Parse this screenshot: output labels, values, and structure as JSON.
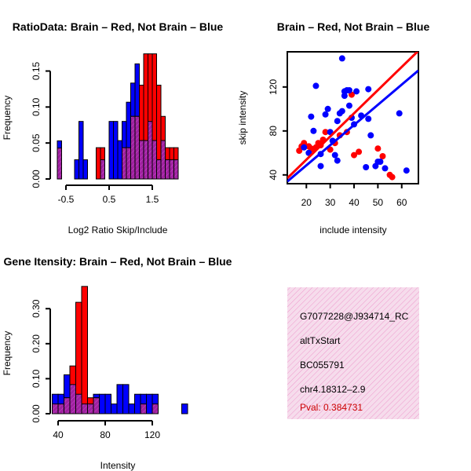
{
  "colors": {
    "red": "#ff0000",
    "blue": "#0000ff",
    "overlap": "#a020a0",
    "info_bg": "#f6dcec",
    "info_hatch": "#ee99cc",
    "pval_text": "#cc0000"
  },
  "chart_data": [
    {
      "id": "ratio_hist",
      "type": "bar",
      "title": "RatioData: Brain – Red, Not Brain – Blue",
      "xlabel": "Log2 Ratio Skip/Include",
      "ylabel": "Frequency",
      "x_ticks": [
        "-0.5",
        "0.5",
        "1.5"
      ],
      "y_ticks": [
        "0.00",
        "0.05",
        "0.10",
        "0.15"
      ],
      "bin_starts": [
        -0.7,
        -0.6,
        -0.5,
        -0.4,
        -0.3,
        -0.2,
        -0.1,
        0.0,
        0.1,
        0.2,
        0.3,
        0.4,
        0.5,
        0.6,
        0.7,
        0.8,
        0.9,
        1.0,
        1.1,
        1.2,
        1.3,
        1.4,
        1.5,
        1.6,
        1.7,
        1.8,
        1.9,
        2.0
      ],
      "bin_width": 0.1,
      "series": [
        {
          "name": "Not Brain",
          "color": "blue",
          "values": [
            0.053,
            0,
            0,
            0,
            0.0267,
            0.08,
            0.0267,
            0,
            0,
            0,
            0.0267,
            0,
            0.08,
            0.08,
            0.0533,
            0.08,
            0.1067,
            0.1333,
            0.16,
            0.1067,
            0.1333,
            0.08,
            0.0533,
            0.0267,
            0.0533,
            0.0267,
            0.0267,
            0.0267
          ]
        },
        {
          "name": "Brain",
          "color": "red",
          "values": [
            0,
            0,
            0,
            0,
            0,
            0,
            0,
            0,
            0,
            0.0435,
            0.0435,
            0,
            0,
            0,
            0,
            0.0435,
            0.0435,
            0.087,
            0.087,
            0.1304,
            0.1739,
            0.1739,
            0.1739,
            0.1304,
            0.087,
            0.0435,
            0.0435,
            0.0435
          ]
        }
      ],
      "overlap_values": [
        0.043,
        0,
        0,
        0,
        0,
        0,
        0,
        0,
        0,
        0,
        0.0267,
        0,
        0,
        0,
        0,
        0.0435,
        0.0435,
        0.087,
        0.087,
        0.0535,
        0.0535,
        0.08,
        0.0535,
        0.0267,
        0.0535,
        0.0267,
        0.0267,
        0.0267
      ],
      "xlim": [
        -0.9,
        2.3
      ],
      "ylim": [
        0,
        0.18
      ]
    },
    {
      "id": "scatter",
      "type": "scatter",
      "title": "Brain – Red, Not Brain – Blue",
      "xlabel": "include intensity",
      "ylabel": "skip intensity",
      "x_ticks": [
        "20",
        "30",
        "40",
        "50",
        "60"
      ],
      "y_ticks": [
        "40",
        "80",
        "120"
      ],
      "xlim": [
        12,
        67
      ],
      "ylim": [
        32,
        152
      ],
      "series": [
        {
          "name": "Brain",
          "color": "red",
          "points": [
            [
              17,
              62
            ],
            [
              18,
              66
            ],
            [
              19,
              69
            ],
            [
              21,
              66
            ],
            [
              22,
              64
            ],
            [
              23,
              63
            ],
            [
              24,
              65
            ],
            [
              25,
              69
            ],
            [
              26,
              67
            ],
            [
              27,
              72
            ],
            [
              28,
              79
            ],
            [
              30,
              63
            ],
            [
              32,
              69
            ],
            [
              34,
              76
            ],
            [
              37,
              79
            ],
            [
              39,
              113
            ],
            [
              40,
              58
            ],
            [
              42,
              61
            ],
            [
              50,
              64
            ],
            [
              52,
              57
            ],
            [
              55,
              40
            ],
            [
              56,
              38
            ]
          ],
          "fit": [
            [
              12,
              37
            ],
            [
              67,
              153
            ]
          ]
        },
        {
          "name": "Not Brain",
          "color": "blue",
          "points": [
            [
              19,
              65
            ],
            [
              21,
              60
            ],
            [
              22,
              93
            ],
            [
              23,
              80
            ],
            [
              24,
              121
            ],
            [
              26,
              48
            ],
            [
              26,
              59
            ],
            [
              28,
              95
            ],
            [
              29,
              100
            ],
            [
              30,
              79
            ],
            [
              31,
              71
            ],
            [
              32,
              58
            ],
            [
              33,
              53
            ],
            [
              33,
              89
            ],
            [
              34,
              96
            ],
            [
              35,
              98
            ],
            [
              35,
              146
            ],
            [
              36,
              112
            ],
            [
              36,
              116
            ],
            [
              37,
              117
            ],
            [
              38,
              103
            ],
            [
              38,
              117
            ],
            [
              39,
              92
            ],
            [
              40,
              86
            ],
            [
              41,
              116
            ],
            [
              43,
              94
            ],
            [
              45,
              47
            ],
            [
              46,
              91
            ],
            [
              46,
              118
            ],
            [
              47,
              76
            ],
            [
              49,
              48
            ],
            [
              50,
              52
            ],
            [
              51,
              52
            ],
            [
              53,
              46
            ],
            [
              59,
              96
            ],
            [
              62,
              44
            ]
          ],
          "fit": [
            [
              12,
              34
            ],
            [
              67,
              135
            ]
          ]
        }
      ]
    },
    {
      "id": "intensity_hist",
      "type": "bar",
      "title": "Gene Itensity: Brain – Red, Not Brain – Blue",
      "xlabel": "Intensity",
      "ylabel": "Frequency",
      "x_ticks": [
        "40",
        "80",
        "120"
      ],
      "y_ticks": [
        "0.00",
        "0.10",
        "0.20",
        "0.30"
      ],
      "bin_starts": [
        35,
        40,
        45,
        50,
        55,
        60,
        65,
        70,
        75,
        80,
        85,
        90,
        95,
        100,
        105,
        110,
        115,
        120,
        125,
        130,
        135,
        140,
        145
      ],
      "bin_width": 5,
      "series": [
        {
          "name": "Not Brain",
          "color": "blue",
          "values": [
            0.0556,
            0.0556,
            0.1111,
            0.0833,
            0.0556,
            0.0278,
            0.0278,
            0.0556,
            0.0556,
            0.0556,
            0.0278,
            0.0833,
            0.0833,
            0.0278,
            0.0556,
            0.0556,
            0.0556,
            0.0556,
            0,
            0,
            0,
            0,
            0.0278
          ]
        },
        {
          "name": "Brain",
          "color": "red",
          "values": [
            0,
            0,
            0.0455,
            0.1364,
            0.3182,
            0.3636,
            0.0455,
            0.0455,
            0,
            0,
            0,
            0,
            0,
            0,
            0,
            0,
            0,
            0,
            0,
            0,
            0,
            0,
            0
          ]
        }
      ],
      "overlap_values": [
        0.0278,
        0.0278,
        0.0455,
        0.0833,
        0.0556,
        0.0278,
        0.0278,
        0.0455,
        0,
        0,
        0,
        0,
        0,
        0,
        0,
        0.0278,
        0,
        0.0278,
        0,
        0,
        0,
        0,
        0
      ],
      "xlim": [
        32,
        150
      ],
      "ylim": [
        0,
        0.37
      ]
    }
  ],
  "info_panel": {
    "probe_id": "G7077228@J934714_RC",
    "event_type": "altTxStart",
    "accession": "BC055791",
    "location": "chr4.18312–2.9",
    "pval": "Pval: 0.384731"
  }
}
